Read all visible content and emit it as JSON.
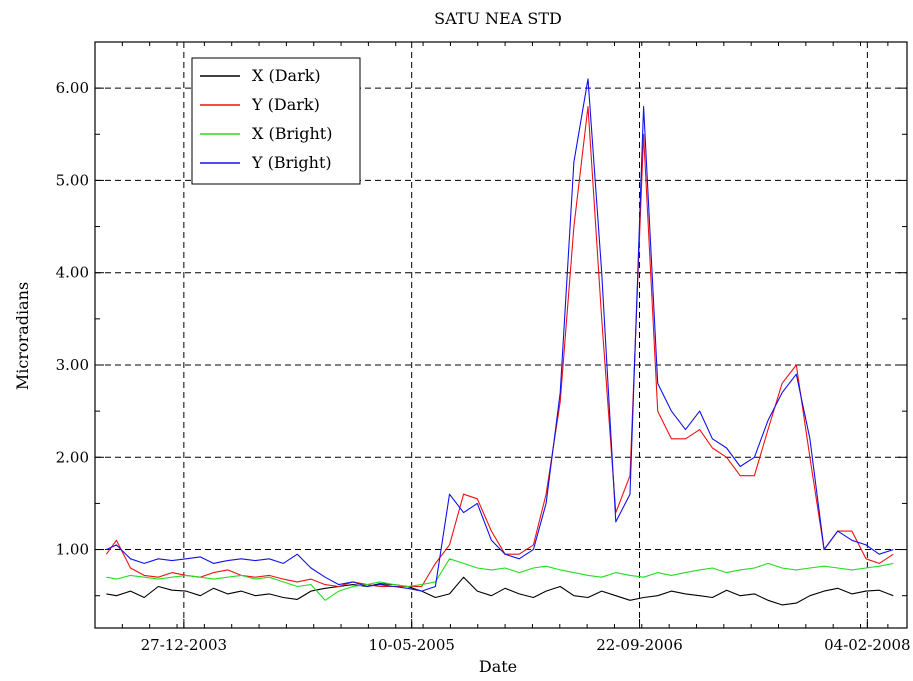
{
  "chart_data": {
    "type": "line",
    "title": "SATU NEA STD",
    "xlabel": "Date",
    "ylabel": "Microradians",
    "x_ticks": [
      "27-12-2003",
      "10-05-2005",
      "22-09-2006",
      "04-02-2008"
    ],
    "y_ticks": [
      "1.00",
      "2.00",
      "3.00",
      "4.00",
      "5.00",
      "6.00"
    ],
    "xlim": [
      "2003-06-15",
      "2008-05-01"
    ],
    "ylim": [
      0.15,
      6.5
    ],
    "grid": true,
    "legend_position": "top-left",
    "series": [
      {
        "name": "X (Dark)",
        "color": "#000000",
        "x": [
          "2003-07-10",
          "2003-08-01",
          "2003-09-01",
          "2003-10-01",
          "2003-11-01",
          "2003-12-01",
          "2004-01-01",
          "2004-02-01",
          "2004-03-01",
          "2004-04-01",
          "2004-05-01",
          "2004-06-01",
          "2004-07-01",
          "2004-08-01",
          "2004-09-01",
          "2004-10-01",
          "2004-11-01",
          "2004-12-01",
          "2005-01-01",
          "2005-02-01",
          "2005-03-01",
          "2005-04-01",
          "2005-05-01",
          "2005-06-01",
          "2005-07-01",
          "2005-08-01",
          "2005-09-01",
          "2005-10-01",
          "2005-11-01",
          "2005-12-01",
          "2006-01-01",
          "2006-02-01",
          "2006-03-01",
          "2006-04-01",
          "2006-05-01",
          "2006-06-01",
          "2006-07-01",
          "2006-08-01",
          "2006-09-01",
          "2006-10-01",
          "2006-11-01",
          "2006-12-01",
          "2007-01-01",
          "2007-02-01",
          "2007-03-01",
          "2007-04-01",
          "2007-05-01",
          "2007-06-01",
          "2007-07-01",
          "2007-08-01",
          "2007-09-01",
          "2007-10-01",
          "2007-11-01",
          "2007-12-01",
          "2008-01-01",
          "2008-02-01",
          "2008-03-01",
          "2008-04-01"
        ],
        "values": [
          0.52,
          0.5,
          0.55,
          0.48,
          0.6,
          0.56,
          0.55,
          0.5,
          0.58,
          0.52,
          0.55,
          0.5,
          0.52,
          0.48,
          0.46,
          0.55,
          0.58,
          0.6,
          0.62,
          0.6,
          0.63,
          0.62,
          0.6,
          0.55,
          0.48,
          0.52,
          0.7,
          0.55,
          0.5,
          0.58,
          0.52,
          0.48,
          0.55,
          0.6,
          0.5,
          0.48,
          0.55,
          0.5,
          0.45,
          0.48,
          0.5,
          0.55,
          0.52,
          0.5,
          0.48,
          0.56,
          0.5,
          0.52,
          0.45,
          0.4,
          0.42,
          0.5,
          0.55,
          0.58,
          0.52,
          0.55,
          0.56,
          0.5
        ]
      },
      {
        "name": "Y (Dark)",
        "color": "#ee1111",
        "x": [
          "2003-07-10",
          "2003-08-01",
          "2003-09-01",
          "2003-10-01",
          "2003-11-01",
          "2003-12-01",
          "2004-01-01",
          "2004-02-01",
          "2004-03-01",
          "2004-04-01",
          "2004-05-01",
          "2004-06-01",
          "2004-07-01",
          "2004-08-01",
          "2004-09-01",
          "2004-10-01",
          "2004-11-01",
          "2004-12-01",
          "2005-01-01",
          "2005-02-01",
          "2005-03-01",
          "2005-04-01",
          "2005-05-01",
          "2005-06-01",
          "2005-07-01",
          "2005-08-01",
          "2005-09-01",
          "2005-10-01",
          "2005-11-01",
          "2005-12-01",
          "2006-01-01",
          "2006-02-01",
          "2006-03-01",
          "2006-04-01",
          "2006-05-01",
          "2006-06-01",
          "2006-07-01",
          "2006-08-01",
          "2006-09-01",
          "2006-10-01",
          "2006-11-01",
          "2006-12-01",
          "2007-01-01",
          "2007-02-01",
          "2007-03-01",
          "2007-04-01",
          "2007-05-01",
          "2007-06-01",
          "2007-07-01",
          "2007-08-01",
          "2007-09-01",
          "2007-10-01",
          "2007-11-01",
          "2007-12-01",
          "2008-01-01",
          "2008-02-01",
          "2008-03-01",
          "2008-04-01"
        ],
        "values": [
          0.95,
          1.1,
          0.8,
          0.72,
          0.7,
          0.75,
          0.72,
          0.7,
          0.75,
          0.78,
          0.72,
          0.7,
          0.72,
          0.68,
          0.65,
          0.68,
          0.62,
          0.6,
          0.65,
          0.62,
          0.6,
          0.6,
          0.6,
          0.6,
          0.85,
          1.05,
          1.6,
          1.55,
          1.2,
          0.95,
          0.95,
          1.05,
          1.6,
          2.6,
          4.5,
          5.8,
          3.5,
          1.4,
          1.8,
          5.5,
          2.5,
          2.2,
          2.2,
          2.3,
          2.1,
          2.0,
          1.8,
          1.8,
          2.3,
          2.8,
          3.0,
          2.0,
          1.0,
          1.2,
          1.2,
          0.9,
          0.85,
          0.95
        ]
      },
      {
        "name": "X (Bright)",
        "color": "#22dd22",
        "x": [
          "2003-07-10",
          "2003-08-01",
          "2003-09-01",
          "2003-10-01",
          "2003-11-01",
          "2003-12-01",
          "2004-01-01",
          "2004-02-01",
          "2004-03-01",
          "2004-04-01",
          "2004-05-01",
          "2004-06-01",
          "2004-07-01",
          "2004-08-01",
          "2004-09-01",
          "2004-10-01",
          "2004-11-01",
          "2004-12-01",
          "2005-01-01",
          "2005-02-01",
          "2005-03-01",
          "2005-04-01",
          "2005-05-01",
          "2005-06-01",
          "2005-07-01",
          "2005-08-01",
          "2005-09-01",
          "2005-10-01",
          "2005-11-01",
          "2005-12-01",
          "2006-01-01",
          "2006-02-01",
          "2006-03-01",
          "2006-04-01",
          "2006-05-01",
          "2006-06-01",
          "2006-07-01",
          "2006-08-01",
          "2006-09-01",
          "2006-10-01",
          "2006-11-01",
          "2006-12-01",
          "2007-01-01",
          "2007-02-01",
          "2007-03-01",
          "2007-04-01",
          "2007-05-01",
          "2007-06-01",
          "2007-07-01",
          "2007-08-01",
          "2007-09-01",
          "2007-10-01",
          "2007-11-01",
          "2007-12-01",
          "2008-01-01",
          "2008-02-01",
          "2008-03-01",
          "2008-04-01"
        ],
        "values": [
          0.7,
          0.68,
          0.72,
          0.7,
          0.68,
          0.7,
          0.72,
          0.7,
          0.68,
          0.7,
          0.72,
          0.68,
          0.7,
          0.65,
          0.6,
          0.62,
          0.45,
          0.55,
          0.6,
          0.62,
          0.65,
          0.62,
          0.6,
          0.62,
          0.65,
          0.9,
          0.85,
          0.8,
          0.78,
          0.8,
          0.75,
          0.8,
          0.82,
          0.78,
          0.75,
          0.72,
          0.7,
          0.75,
          0.72,
          0.7,
          0.75,
          0.72,
          0.75,
          0.78,
          0.8,
          0.75,
          0.78,
          0.8,
          0.85,
          0.8,
          0.78,
          0.8,
          0.82,
          0.8,
          0.78,
          0.8,
          0.82,
          0.85
        ]
      },
      {
        "name": "Y (Bright)",
        "color": "#1111ee",
        "x": [
          "2003-07-10",
          "2003-08-01",
          "2003-09-01",
          "2003-10-01",
          "2003-11-01",
          "2003-12-01",
          "2004-01-01",
          "2004-02-01",
          "2004-03-01",
          "2004-04-01",
          "2004-05-01",
          "2004-06-01",
          "2004-07-01",
          "2004-08-01",
          "2004-09-01",
          "2004-10-01",
          "2004-11-01",
          "2004-12-01",
          "2005-01-01",
          "2005-02-01",
          "2005-03-01",
          "2005-04-01",
          "2005-05-01",
          "2005-06-01",
          "2005-07-01",
          "2005-08-01",
          "2005-09-01",
          "2005-10-01",
          "2005-11-01",
          "2005-12-01",
          "2006-01-01",
          "2006-02-01",
          "2006-03-01",
          "2006-04-01",
          "2006-05-01",
          "2006-06-01",
          "2006-07-01",
          "2006-08-01",
          "2006-09-01",
          "2006-10-01",
          "2006-11-01",
          "2006-12-01",
          "2007-01-01",
          "2007-02-01",
          "2007-03-01",
          "2007-04-01",
          "2007-05-01",
          "2007-06-01",
          "2007-07-01",
          "2007-08-01",
          "2007-09-01",
          "2007-10-01",
          "2007-11-01",
          "2007-12-01",
          "2008-01-01",
          "2008-02-01",
          "2008-03-01",
          "2008-04-01"
        ],
        "values": [
          1.0,
          1.05,
          0.9,
          0.85,
          0.9,
          0.88,
          0.9,
          0.92,
          0.85,
          0.88,
          0.9,
          0.88,
          0.9,
          0.85,
          0.95,
          0.8,
          0.7,
          0.62,
          0.65,
          0.6,
          0.62,
          0.6,
          0.58,
          0.55,
          0.6,
          1.6,
          1.4,
          1.5,
          1.1,
          0.95,
          0.9,
          1.0,
          1.5,
          2.7,
          5.2,
          6.1,
          4.0,
          1.3,
          1.6,
          5.8,
          2.8,
          2.5,
          2.3,
          2.5,
          2.2,
          2.1,
          1.9,
          2.0,
          2.4,
          2.7,
          2.9,
          2.2,
          1.0,
          1.2,
          1.1,
          1.05,
          0.95,
          1.0
        ]
      }
    ]
  }
}
